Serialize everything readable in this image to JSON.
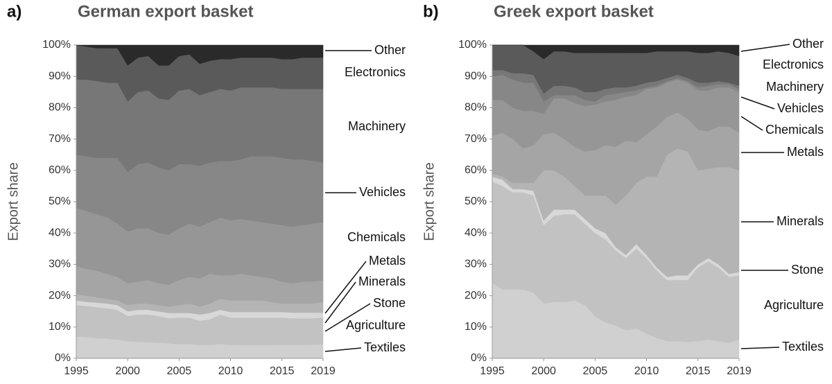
{
  "chart_data": [
    {
      "type": "area",
      "stacked": true,
      "panel": "a)",
      "title": "German export basket",
      "y_label": "Export share",
      "legend": "right",
      "x": [
        1995,
        1996,
        1997,
        1998,
        1999,
        2000,
        2001,
        2002,
        2003,
        2004,
        2005,
        2006,
        2007,
        2008,
        2009,
        2010,
        2011,
        2012,
        2013,
        2014,
        2015,
        2016,
        2017,
        2018,
        2019
      ],
      "xlim": [
        1995,
        2019
      ],
      "xticks": [
        1995,
        2000,
        2005,
        2010,
        2015,
        2019
      ],
      "ylim": [
        0,
        100
      ],
      "yticks": [
        {
          "value": 0,
          "label": "0%"
        },
        {
          "value": 10,
          "label": "10%"
        },
        {
          "value": 20,
          "label": "20%"
        },
        {
          "value": 30,
          "label": "30%"
        },
        {
          "value": 40,
          "label": "40%"
        },
        {
          "value": 50,
          "label": "50%"
        },
        {
          "value": 60,
          "label": "60%"
        },
        {
          "value": 70,
          "label": "70%"
        },
        {
          "value": 80,
          "label": "80%"
        },
        {
          "value": 90,
          "label": "90%"
        },
        {
          "value": 100,
          "label": "100%"
        }
      ],
      "series": [
        {
          "name": "Textiles",
          "color": "#d0d0d0",
          "values": [
            7,
            6.8,
            6.5,
            6.3,
            6,
            5.5,
            5.3,
            5.2,
            5,
            4.8,
            4.5,
            4.5,
            4.3,
            4.3,
            4.5,
            4.3,
            4.3,
            4.2,
            4.2,
            4.3,
            4.3,
            4.3,
            4.3,
            4.4,
            4.5
          ]
        },
        {
          "name": "Agriculture",
          "color": "#c2c2c2",
          "values": [
            10,
            10,
            9.8,
            9.7,
            9.5,
            8,
            8.7,
            8.8,
            8.5,
            8,
            8.5,
            8.5,
            7.7,
            8.2,
            9.5,
            8.7,
            8.7,
            8.8,
            8.8,
            8.7,
            8.7,
            8.5,
            8.5,
            8.4,
            8.5
          ]
        },
        {
          "name": "Stone",
          "color": "#d8d8d8",
          "values": [
            1.5,
            1.2,
            1.5,
            1.5,
            1.5,
            1.5,
            1.5,
            1.5,
            1.5,
            1.7,
            1.5,
            1.5,
            2,
            2,
            1.5,
            1.8,
            1.8,
            1.8,
            1.8,
            1.8,
            1.8,
            1.8,
            1.8,
            1.8,
            1.6
          ]
        },
        {
          "name": "Minerals",
          "color": "#b4b4b4",
          "values": [
            2,
            2,
            1.7,
            1.5,
            1.5,
            2,
            2,
            2,
            2,
            2,
            2.5,
            3,
            2.5,
            3,
            3.5,
            3.7,
            3.7,
            3.7,
            3.7,
            3.2,
            2.7,
            2.9,
            2.9,
            2.9,
            3.4
          ]
        },
        {
          "name": "Metals",
          "color": "#a5a5a5",
          "values": [
            9,
            8.5,
            8.5,
            8,
            7.5,
            7,
            7,
            7.5,
            7,
            7,
            8,
            8.5,
            9,
            9.5,
            7.5,
            8,
            8.5,
            8,
            7.5,
            7.5,
            7,
            6.5,
            7,
            7,
            7
          ]
        },
        {
          "name": "Chemicals",
          "color": "#969696",
          "values": [
            18.5,
            18.5,
            18,
            18,
            17,
            16.5,
            17,
            16.5,
            16,
            16,
            16.5,
            17,
            16.5,
            16.5,
            18.5,
            17.5,
            17.5,
            17.5,
            17.5,
            17.5,
            18,
            18,
            18,
            18.5,
            18.5
          ]
        },
        {
          "name": "Vehicles",
          "color": "#878787",
          "values": [
            17,
            17.5,
            18,
            19,
            21,
            19,
            20.5,
            21,
            21,
            20.5,
            20.5,
            19,
            19.5,
            19,
            18,
            19,
            19,
            20.5,
            21,
            21.5,
            21.5,
            21.5,
            21,
            20,
            19
          ]
        },
        {
          "name": "Machinery",
          "color": "#777777",
          "values": [
            24,
            24.5,
            24.5,
            24,
            24,
            22.5,
            23,
            23,
            22,
            22.5,
            23.5,
            24,
            22.5,
            22.5,
            23,
            22.5,
            23,
            22,
            22,
            22,
            22,
            22.5,
            22.5,
            23,
            23.5
          ]
        },
        {
          "name": "Electronics",
          "color": "#5a5a5a",
          "values": [
            11,
            10.5,
            10.5,
            11,
            11,
            11.5,
            11,
            11,
            10.5,
            11,
            11,
            11,
            10,
            10,
            9.5,
            10,
            9.5,
            9.5,
            9.5,
            9.5,
            9.5,
            9.5,
            10,
            10,
            10
          ]
        },
        {
          "name": "Other",
          "color": "#2a2a2a",
          "values": [
            0,
            0.5,
            1,
            1,
            1,
            6.5,
            4,
            3.5,
            6.5,
            6.5,
            3.5,
            3,
            6,
            5,
            4.5,
            4.5,
            4,
            4,
            4,
            4,
            4.5,
            4.5,
            4,
            4,
            4
          ]
        }
      ]
    },
    {
      "type": "area",
      "stacked": true,
      "panel": "b)",
      "title": "Greek export basket",
      "y_label": "Export share",
      "legend": "right",
      "x": [
        1995,
        1996,
        1997,
        1998,
        1999,
        2000,
        2001,
        2002,
        2003,
        2004,
        2005,
        2006,
        2007,
        2008,
        2009,
        2010,
        2011,
        2012,
        2013,
        2014,
        2015,
        2016,
        2017,
        2018,
        2019
      ],
      "xlim": [
        1995,
        2019
      ],
      "xticks": [
        1995,
        2000,
        2005,
        2010,
        2015,
        2019
      ],
      "ylim": [
        0,
        100
      ],
      "yticks": [
        {
          "value": 0,
          "label": "0%"
        },
        {
          "value": 10,
          "label": "10%"
        },
        {
          "value": 20,
          "label": "20%"
        },
        {
          "value": 30,
          "label": "30%"
        },
        {
          "value": 40,
          "label": "40%"
        },
        {
          "value": 50,
          "label": "50%"
        },
        {
          "value": 60,
          "label": "60%"
        },
        {
          "value": 70,
          "label": "70%"
        },
        {
          "value": 80,
          "label": "80%"
        },
        {
          "value": 90,
          "label": "90%"
        },
        {
          "value": 100,
          "label": "100%"
        }
      ],
      "series": [
        {
          "name": "Textiles",
          "color": "#d0d0d0",
          "values": [
            24,
            22,
            22,
            22,
            21,
            17.5,
            18,
            18,
            18.5,
            17,
            13.5,
            11.5,
            10.5,
            9,
            9.5,
            8,
            6.5,
            5.5,
            5.5,
            5.2,
            5.5,
            6,
            5.5,
            5,
            6
          ]
        },
        {
          "name": "Agriculture",
          "color": "#c2c2c2",
          "values": [
            32.5,
            33,
            31,
            31,
            31,
            25,
            27.5,
            28,
            27.5,
            26,
            26.5,
            26.5,
            24,
            23,
            25.5,
            24,
            21.5,
            19.5,
            19.5,
            19.8,
            23.5,
            25,
            23.5,
            21,
            20.5
          ]
        },
        {
          "name": "Stone",
          "color": "#d8d8d8",
          "values": [
            1.5,
            2,
            1,
            1,
            1.5,
            1.5,
            2,
            1.5,
            1.5,
            1.5,
            1.5,
            2,
            1,
            1,
            1.5,
            1,
            1,
            1,
            1.5,
            1.5,
            1,
            1,
            1,
            1,
            1
          ]
        },
        {
          "name": "Minerals",
          "color": "#b4b4b4",
          "values": [
            1,
            1,
            2,
            2,
            2.5,
            16,
            12.5,
            10.5,
            7.5,
            7.5,
            10.5,
            12,
            13.5,
            19,
            19.5,
            25,
            29,
            39,
            40.5,
            39.5,
            30,
            28.5,
            31,
            34,
            32.5
          ]
        },
        {
          "name": "Metals",
          "color": "#a5a5a5",
          "values": [
            12,
            14,
            14,
            11,
            12,
            11.5,
            12,
            12,
            12.5,
            14,
            14.5,
            16,
            18.5,
            17.5,
            13,
            13.5,
            16,
            12,
            11.5,
            10.5,
            13,
            12,
            13,
            13,
            12
          ]
        },
        {
          "name": "Chemicals",
          "color": "#969696",
          "values": [
            11.5,
            10.5,
            10,
            12,
            11,
            6.5,
            11,
            13,
            14,
            14.5,
            14.5,
            14,
            15,
            14,
            15,
            14.5,
            12.5,
            11,
            10.5,
            11.5,
            12.5,
            13,
            12.5,
            12.5,
            13
          ]
        },
        {
          "name": "Vehicles",
          "color": "#878787",
          "values": [
            7.5,
            8,
            9,
            9,
            9,
            4,
            1,
            1,
            2.5,
            2,
            1,
            2,
            2,
            1.5,
            1.5,
            0.5,
            0.5,
            0.5,
            0.5,
            0.5,
            1,
            1.5,
            1,
            1,
            1
          ]
        },
        {
          "name": "Machinery",
          "color": "#777777",
          "values": [
            2,
            1.5,
            2,
            3,
            2.5,
            2.5,
            3,
            3,
            2.5,
            2.5,
            3,
            2,
            2,
            1.5,
            1.5,
            1.5,
            1.5,
            1,
            1,
            1,
            1.5,
            1,
            1,
            0.5,
            1
          ]
        },
        {
          "name": "Electronics",
          "color": "#5a5a5a",
          "values": [
            8,
            8,
            9,
            9,
            7.5,
            11,
            11,
            11,
            11,
            12.5,
            12.5,
            11.5,
            11,
            11,
            10.5,
            9.5,
            9.5,
            8.5,
            7.5,
            8.5,
            9.5,
            9.5,
            9.5,
            9.5,
            9.5
          ]
        },
        {
          "name": "Other",
          "color": "#2a2a2a",
          "values": [
            0,
            0,
            0,
            0,
            2,
            4.5,
            2,
            2,
            2.5,
            2.5,
            2.5,
            2.5,
            2.5,
            2.5,
            2.5,
            2.5,
            2,
            2,
            2,
            2,
            2.5,
            2.5,
            2,
            2.5,
            3.5
          ]
        }
      ]
    }
  ]
}
